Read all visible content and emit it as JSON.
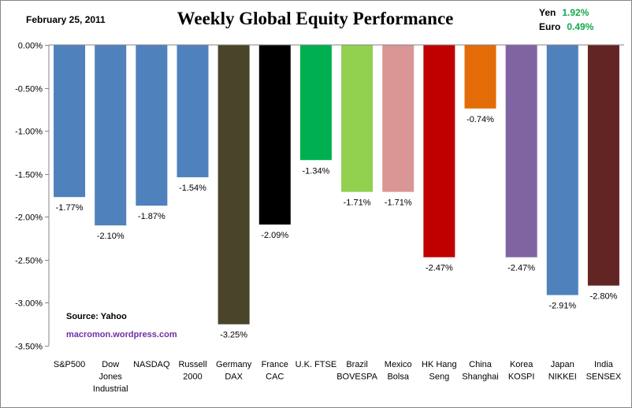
{
  "date_label": "February 25, 2011",
  "currency": [
    {
      "name": "Yen",
      "value": "1.92%"
    },
    {
      "name": "Euro",
      "value": "0.49%"
    }
  ],
  "source_label": "Source:  Yahoo",
  "site_label": "macromon.wordpress.com",
  "chart_data": {
    "type": "bar",
    "title": "Weekly Global Equity Performance",
    "xlabel": "",
    "ylabel": "",
    "ylim": [
      -3.5,
      0
    ],
    "yticks": [
      "0.00%",
      "-0.50%",
      "-1.00%",
      "-1.50%",
      "-2.00%",
      "-2.50%",
      "-3.00%",
      "-3.50%"
    ],
    "grid": false,
    "categories": [
      [
        "S&P500"
      ],
      [
        "Dow",
        "Jones",
        "Industrial"
      ],
      [
        "NASDAQ"
      ],
      [
        "Russell",
        "2000"
      ],
      [
        "Germany",
        "DAX"
      ],
      [
        "France",
        "CAC"
      ],
      [
        "U.K. FTSE"
      ],
      [
        "Brazil",
        "BOVESPA"
      ],
      [
        "Mexico",
        "Bolsa"
      ],
      [
        "HK Hang",
        "Seng"
      ],
      [
        "China",
        "Shanghai"
      ],
      [
        "Korea",
        "KOSPI"
      ],
      [
        "Japan",
        "NIKKEI"
      ],
      [
        "India",
        "SENSEX"
      ]
    ],
    "values": [
      -1.77,
      -2.1,
      -1.87,
      -1.54,
      -3.25,
      -2.09,
      -1.34,
      -1.71,
      -1.71,
      -2.47,
      -0.74,
      -2.47,
      -2.91,
      -2.8
    ],
    "value_labels": [
      "-1.77%",
      "-2.10%",
      "-1.87%",
      "-1.54%",
      "-3.25%",
      "-2.09%",
      "-1.34%",
      "-1.71%",
      "-1.71%",
      "-2.47%",
      "-0.74%",
      "-2.47%",
      "-2.91%",
      "-2.80%"
    ],
    "colors": [
      "#4f81bd",
      "#4f81bd",
      "#4f81bd",
      "#4f81bd",
      "#4a452a",
      "#000000",
      "#00b050",
      "#92d050",
      "#d99694",
      "#c00000",
      "#e36c09",
      "#8064a2",
      "#4f81bd",
      "#632523"
    ]
  }
}
